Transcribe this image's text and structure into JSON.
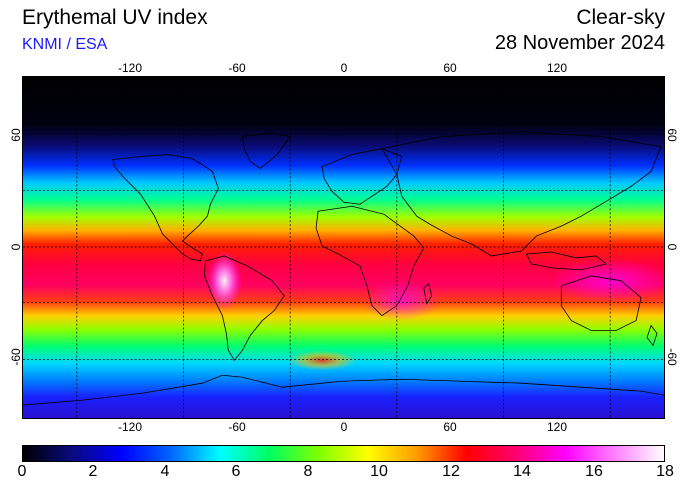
{
  "header": {
    "title": "Erythemal UV index",
    "subtitle": "KNMI / ESA",
    "mode": "Clear-sky",
    "date": "28 November 2024"
  },
  "map": {
    "projection": "equirectangular",
    "lon_range": [
      -180,
      180
    ],
    "lat_range": [
      -90,
      90
    ],
    "lon_ticks": [
      -120,
      -60,
      0,
      60,
      120
    ],
    "lat_ticks": [
      60,
      0,
      -60
    ],
    "graticule_lon": [
      -150,
      -90,
      -30,
      30,
      90,
      150
    ],
    "graticule_lat": [
      60,
      30,
      0,
      -30,
      -60
    ],
    "grid": "dashed",
    "coastlines": true
  },
  "colorbar": {
    "min": 0,
    "max": 18,
    "ticks": [
      "0",
      "2",
      "4",
      "6",
      "8",
      "10",
      "12",
      "14",
      "16",
      "18"
    ],
    "colors": [
      "#000000",
      "#0a0a80",
      "#0000ff",
      "#0066ff",
      "#00ffff",
      "#00ff60",
      "#80ff00",
      "#ffff00",
      "#ff9a00",
      "#ff0000",
      "#ff0070",
      "#ff00ff",
      "#ff80ff",
      "#ffffff"
    ]
  }
}
